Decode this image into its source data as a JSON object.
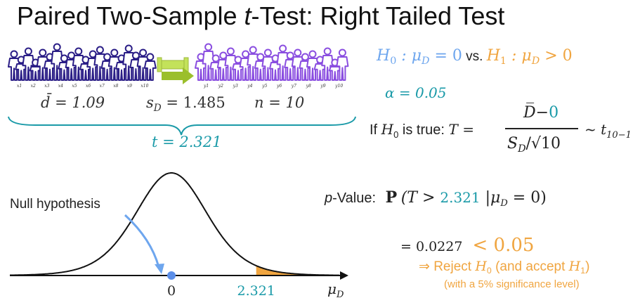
{
  "title": {
    "before": "Paired Two-Sample ",
    "t": "t",
    "after": "-Test: Right Tailed Test"
  },
  "people": {
    "before_labels": [
      "x1",
      "x2",
      "x3",
      "x4",
      "x5",
      "x6",
      "x7",
      "x8",
      "x9",
      "x10"
    ],
    "after_labels": [
      "y1",
      "y2",
      "y3",
      "y4",
      "y5",
      "y6",
      "y7",
      "y8",
      "y9",
      "y10"
    ]
  },
  "stats": {
    "dbar": "d̄ = 1.09",
    "sd": "s",
    "sd_sub": "D",
    "sd_val": " = 1.485",
    "n": "n = 10"
  },
  "t_value": "t = 2.321",
  "hypotheses": {
    "h0": "H",
    "h0_sub": "0",
    "h0_rest": " : μ",
    "h0_mu_sub": "D",
    "h0_val": " = 0",
    "vs": " vs. ",
    "h1": "H",
    "h1_sub": "1",
    "h1_rest": " : μ",
    "h1_mu_sub": "D",
    "h1_val": " > 0"
  },
  "alpha": "α = 0.05",
  "test_stat": {
    "prefix": "If ",
    "h0": "H",
    "h0_sub": "0",
    "is_true": " is true: ",
    "T_eq": "T =",
    "num_a": "D̅−",
    "num_b": "0",
    "den": "S",
    "den_sub": "D",
    "den_rest": "/√10",
    "dist": "~ t",
    "dist_sub": "10−1"
  },
  "pvalue": {
    "label": "p",
    "label_rest": "-Value:",
    "P": "P",
    "open": "(T > ",
    "val": "2.321",
    "cond": " |μ",
    "cond_sub": "D",
    "close": " = 0)"
  },
  "result": {
    "eq": "= 0.0227",
    "lt": "< 0.05"
  },
  "conclusion": {
    "arrow": "⇒ Reject ",
    "h0": "H",
    "h0_sub": "0",
    "mid": " (and accept ",
    "h1": "H",
    "h1_sub": "1",
    "end": ")",
    "note": "(with a 5% significance level)"
  },
  "chart": {
    "annotation": "Null hypothesis",
    "tick_zero": "0",
    "tick_t": "2.321",
    "axis_label": "μ",
    "axis_label_sub": "D"
  },
  "colors": {
    "teal": "#1a9aa8",
    "blue": "#6ea6ee",
    "orange": "#f0a540",
    "purple": "#2a1d86",
    "violet": "#8a4ee0"
  },
  "chart_data": {
    "type": "area",
    "distribution": "t",
    "df": 9,
    "x_range": [
      -4,
      4
    ],
    "shaded_region": {
      "from": 2.321,
      "to": 4,
      "color": "#f0a540"
    },
    "marked_points": [
      0,
      2.321
    ],
    "xlabel": "μD"
  }
}
